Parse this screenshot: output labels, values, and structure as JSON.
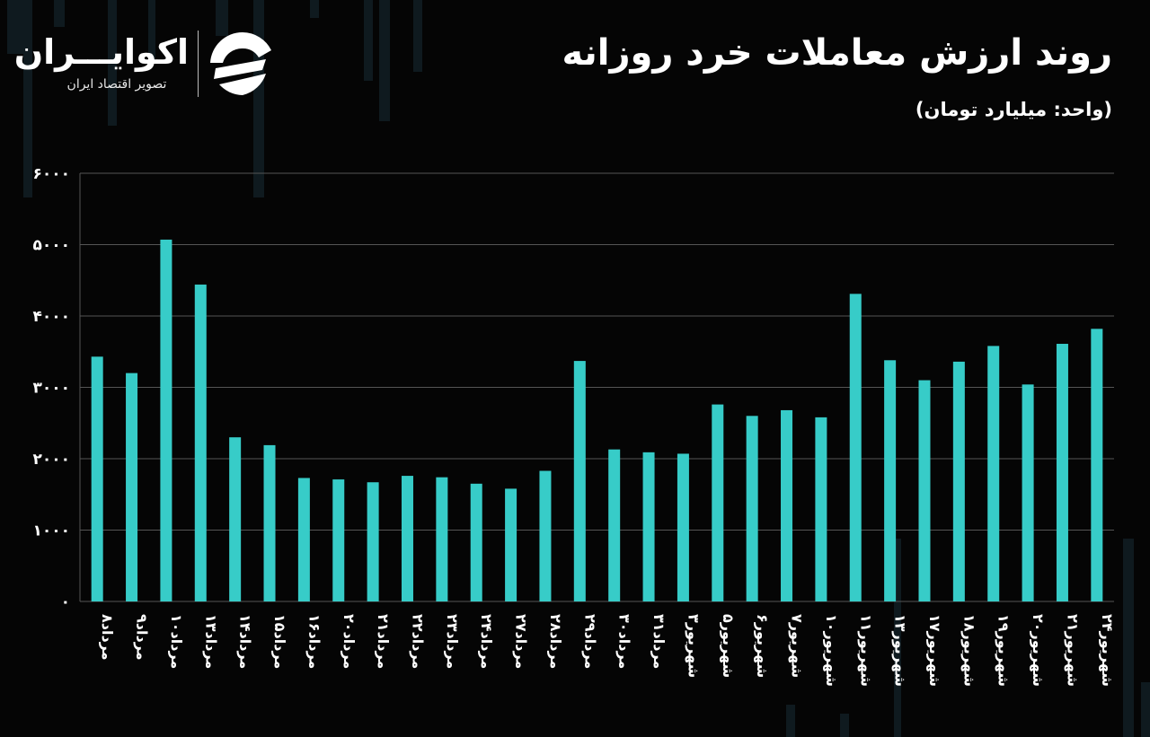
{
  "header": {
    "title": "روند ارزش معاملات خرد روزانه",
    "unit_label": "(واحد: میلیارد تومان)"
  },
  "logo": {
    "name": "اکوایـــران",
    "tagline": "تصویر اقتصاد ایران",
    "icon": "ecoiran-logo-icon"
  },
  "colors": {
    "background": "#050505",
    "bar": "#37CCC8",
    "grid": "#555555",
    "text": "#ffffff"
  },
  "chart_data": {
    "type": "bar",
    "title": "روند ارزش معاملات خرد روزانه",
    "ylabel": "(واحد: میلیارد تومان)",
    "ylim": [
      0,
      6000
    ],
    "yticks": [
      0,
      1000,
      2000,
      3000,
      4000,
      5000,
      6000
    ],
    "ytick_labels": [
      "۰",
      "۱۰۰۰",
      "۲۰۰۰",
      "۳۰۰۰",
      "۴۰۰۰",
      "۵۰۰۰",
      "۶۰۰۰"
    ],
    "grid": true,
    "categories": [
      "مرداد۸",
      "مرداد۹",
      "مرداد۱۰",
      "مرداد۱۳",
      "مرداد۱۴",
      "مرداد۱۵",
      "مرداد۱۶",
      "مرداد۲۰",
      "مرداد۲۱",
      "مرداد۲۲",
      "مرداد۲۳",
      "مرداد۲۴",
      "مرداد۲۷",
      "مرداد۲۸",
      "مرداد۲۹",
      "مرداد۳۰",
      "مرداد۳۱",
      "شهریور۳",
      "شهریور۵",
      "شهریور۶",
      "شهریور۷",
      "شهریور۱۰",
      "شهریور۱۱",
      "شهریور۱۳",
      "شهریور۱۷",
      "شهریور۱۸",
      "شهریور۱۹",
      "شهریور۲۰",
      "شهریور۲۱",
      "شهریور۲۴"
    ],
    "values": [
      3430,
      3200,
      5070,
      4440,
      2300,
      2190,
      1730,
      1710,
      1670,
      1760,
      1740,
      1650,
      1580,
      1830,
      3370,
      2130,
      2090,
      2070,
      2760,
      2600,
      2680,
      2580,
      4310,
      3380,
      3100,
      3360,
      3580,
      3040,
      3610,
      3820
    ]
  }
}
